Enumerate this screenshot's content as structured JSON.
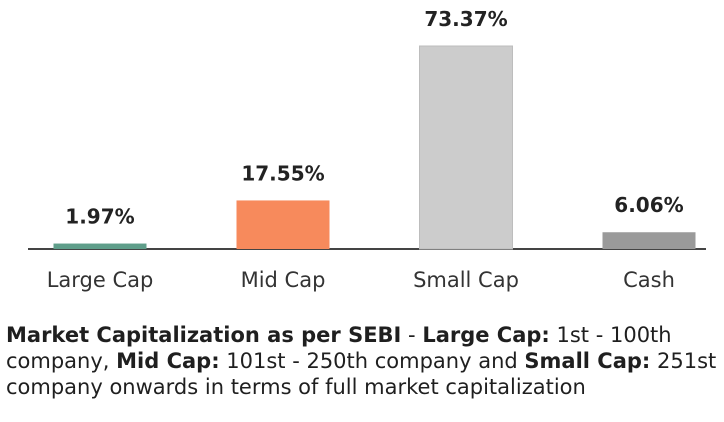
{
  "chart_data": {
    "type": "bar",
    "categories": [
      "Large Cap",
      "Mid Cap",
      "Small Cap",
      "Cash"
    ],
    "values": [
      1.97,
      17.55,
      73.37,
      6.06
    ],
    "data_labels": [
      "1.97%",
      "17.55%",
      "73.37%",
      "6.06%"
    ],
    "colors": [
      "#5f9e8a",
      "#f78a5c",
      "#cccccc",
      "#9a9a9a"
    ],
    "ylim": [
      0,
      73.37
    ],
    "grid": false,
    "legend": "none"
  },
  "footnote": {
    "bold_1": "Market Capitalization as per SEBI",
    "text_1": " - ",
    "bold_2": "Large Cap:",
    "text_2": " 1st - 100th company, ",
    "bold_3": "Mid Cap:",
    "text_3": " 101st - 250th company and ",
    "bold_4": "Small Cap:",
    "text_4": " 251st company onwards in terms of full market capitalization"
  }
}
